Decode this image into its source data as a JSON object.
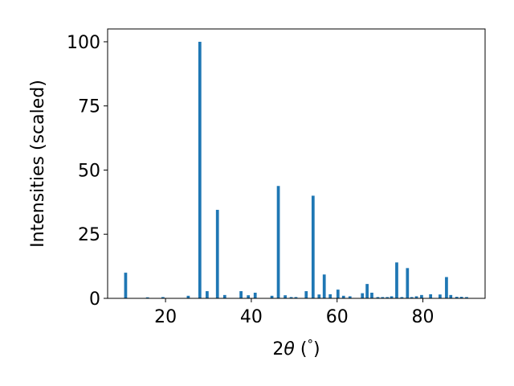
{
  "chart_data": {
    "type": "bar",
    "title": "",
    "xlabel": "2θ (°)",
    "xlabel_parts": {
      "prefix": "2",
      "symbol": "θ",
      "open": " (",
      "unit": "°",
      "close": ")"
    },
    "ylabel": "Intensities (scaled)",
    "xlim": [
      6.5,
      94.5
    ],
    "ylim": [
      0,
      105
    ],
    "bar_width": 0.7,
    "x_ticks": [
      20,
      40,
      60,
      80
    ],
    "x_tick_labels": [
      "20",
      "40",
      "60",
      "80"
    ],
    "y_ticks": [
      0,
      25,
      50,
      75,
      100
    ],
    "y_tick_labels": [
      "0",
      "25",
      "50",
      "75",
      "100"
    ],
    "grid": false,
    "legend": "none",
    "bar_color": "#1f77b4",
    "x": [
      10.7,
      15.8,
      19.4,
      25.3,
      28.0,
      29.7,
      32.1,
      33.8,
      37.6,
      39.3,
      40.9,
      44.8,
      46.3,
      47.9,
      49.3,
      50.4,
      52.8,
      54.4,
      55.8,
      57.0,
      58.4,
      60.2,
      61.5,
      63.0,
      65.9,
      67.0,
      68.1,
      69.5,
      70.6,
      71.7,
      72.7,
      73.9,
      75.1,
      76.4,
      77.4,
      78.5,
      79.7,
      81.8,
      84.0,
      85.5,
      86.5,
      87.9,
      89.0,
      90.2
    ],
    "values": [
      10.0,
      0.4,
      0.5,
      1.0,
      100.0,
      2.8,
      34.5,
      1.3,
      2.8,
      1.2,
      2.2,
      1.0,
      43.8,
      1.2,
      0.5,
      0.5,
      2.8,
      40.0,
      1.5,
      9.3,
      1.6,
      3.4,
      1.0,
      0.8,
      2.0,
      5.6,
      2.2,
      0.5,
      0.5,
      0.5,
      0.8,
      14.0,
      0.5,
      11.8,
      0.5,
      0.8,
      1.3,
      1.6,
      1.5,
      8.3,
      1.3,
      0.6,
      0.6,
      0.5
    ]
  }
}
